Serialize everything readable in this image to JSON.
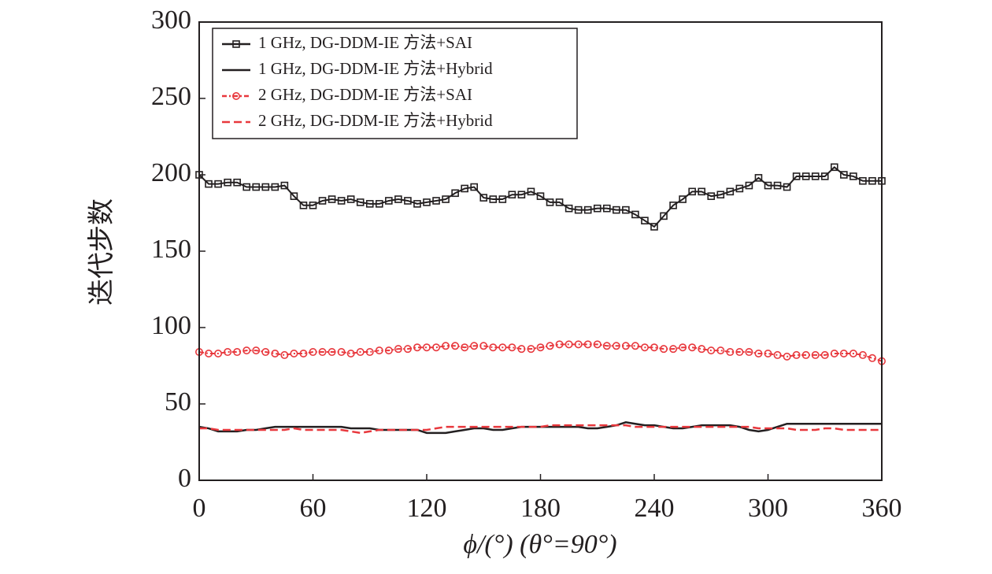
{
  "chart_data": {
    "type": "line",
    "xlabel": "ϕ/(°) (θ°=90°)",
    "ylabel": "迭代步数",
    "x": [
      0,
      5,
      10,
      15,
      20,
      25,
      30,
      35,
      40,
      45,
      50,
      55,
      60,
      65,
      70,
      75,
      80,
      85,
      90,
      95,
      100,
      105,
      110,
      115,
      120,
      125,
      130,
      135,
      140,
      145,
      150,
      155,
      160,
      165,
      170,
      175,
      180,
      185,
      190,
      195,
      200,
      205,
      210,
      215,
      220,
      225,
      230,
      235,
      240,
      245,
      250,
      255,
      260,
      265,
      270,
      275,
      280,
      285,
      290,
      295,
      300,
      305,
      310,
      315,
      320,
      325,
      330,
      335,
      340,
      345,
      350,
      355,
      360
    ],
    "series": [
      {
        "name": "1 GHz, DG-DDM-IE 方法+SAI",
        "color": "#231f20",
        "marker": "square",
        "dash": "solid",
        "values": [
          200,
          194,
          194,
          195,
          195,
          192,
          192,
          192,
          192,
          193,
          186,
          180,
          180,
          183,
          184,
          183,
          184,
          182,
          181,
          181,
          183,
          184,
          183,
          181,
          182,
          183,
          184,
          188,
          191,
          192,
          185,
          184,
          184,
          187,
          187,
          189,
          186,
          182,
          182,
          178,
          177,
          177,
          178,
          178,
          177,
          177,
          174,
          170,
          166,
          173,
          180,
          184,
          189,
          189,
          186,
          187,
          189,
          191,
          193,
          198,
          193,
          193,
          192,
          199,
          199,
          199,
          199,
          205,
          200,
          199,
          196,
          196,
          196
        ]
      },
      {
        "name": "1 GHz, DG-DDM-IE 方法+Hybrid",
        "color": "#231f20",
        "marker": "none",
        "dash": "solid",
        "values": [
          35,
          34,
          32,
          32,
          32,
          33,
          33,
          34,
          35,
          35,
          35,
          35,
          35,
          35,
          35,
          35,
          34,
          34,
          34,
          33,
          33,
          33,
          33,
          33,
          31,
          31,
          31,
          32,
          33,
          34,
          34,
          33,
          33,
          34,
          35,
          35,
          35,
          35,
          35,
          35,
          35,
          34,
          34,
          35,
          36,
          38,
          37,
          36,
          36,
          35,
          34,
          34,
          35,
          36,
          36,
          36,
          36,
          35,
          33,
          32,
          33,
          35,
          37,
          37,
          37,
          37,
          37,
          37,
          37,
          37,
          37,
          37,
          37
        ]
      },
      {
        "name": "2 GHz, DG-DDM-IE 方法+SAI",
        "color": "#e8383d",
        "marker": "circle",
        "dash": "dashdot",
        "values": [
          84,
          83,
          83,
          84,
          84,
          85,
          85,
          84,
          83,
          82,
          83,
          83,
          84,
          84,
          84,
          84,
          83,
          84,
          84,
          85,
          85,
          86,
          86,
          87,
          87,
          87,
          88,
          88,
          87,
          88,
          88,
          87,
          87,
          87,
          86,
          86,
          87,
          88,
          89,
          89,
          89,
          89,
          89,
          88,
          88,
          88,
          88,
          87,
          87,
          86,
          86,
          87,
          87,
          86,
          85,
          85,
          84,
          84,
          84,
          83,
          83,
          82,
          81,
          82,
          82,
          82,
          82,
          83,
          83,
          83,
          82,
          80,
          78
        ]
      },
      {
        "name": "2 GHz, DG-DDM-IE 方法+Hybrid",
        "color": "#e8383d",
        "marker": "none",
        "dash": "dashed",
        "values": [
          34,
          34,
          33,
          33,
          33,
          33,
          33,
          33,
          33,
          33,
          34,
          33,
          33,
          33,
          33,
          33,
          32,
          31,
          32,
          33,
          33,
          33,
          33,
          33,
          33,
          34,
          35,
          35,
          35,
          35,
          35,
          35,
          35,
          35,
          35,
          35,
          35,
          36,
          36,
          36,
          36,
          36,
          36,
          36,
          36,
          36,
          35,
          35,
          35,
          35,
          35,
          35,
          35,
          35,
          35,
          35,
          35,
          35,
          35,
          34,
          34,
          34,
          34,
          33,
          33,
          33,
          34,
          34,
          33,
          33,
          33,
          33,
          33
        ]
      }
    ],
    "xlim": [
      0,
      360
    ],
    "xticks": [
      0,
      60,
      120,
      180,
      240,
      300,
      360
    ],
    "ylim": [
      0,
      300
    ],
    "yticks": [
      0,
      50,
      100,
      150,
      200,
      250,
      300
    ],
    "legend": "upper left",
    "grid": false
  }
}
